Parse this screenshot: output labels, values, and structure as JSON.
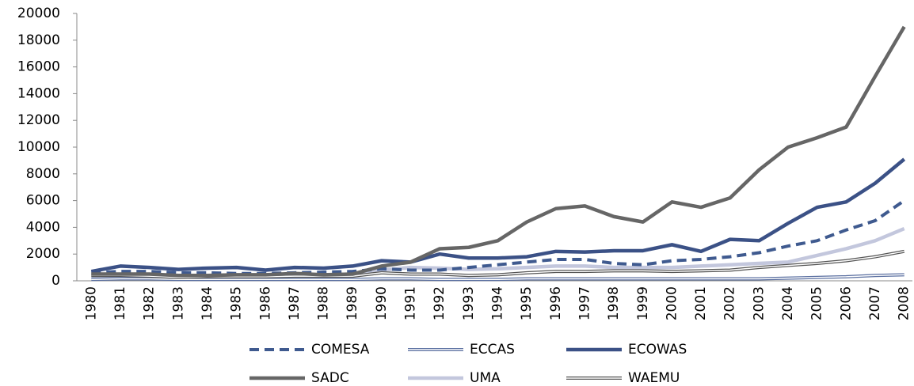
{
  "chart_data": {
    "type": "line",
    "categories": [
      "1980",
      "1981",
      "1982",
      "1983",
      "1984",
      "1985",
      "1986",
      "1987",
      "1988",
      "1989",
      "1990",
      "1991",
      "1992",
      "1993",
      "1994",
      "1995",
      "1996",
      "1997",
      "1998",
      "1999",
      "2000",
      "2001",
      "2002",
      "2003",
      "2004",
      "2005",
      "2006",
      "2007",
      "2008"
    ],
    "ylim": [
      0,
      20000
    ],
    "yticks": [
      0,
      2000,
      4000,
      6000,
      8000,
      10000,
      12000,
      14000,
      16000,
      18000,
      20000
    ],
    "grid": false,
    "legend": "bottom",
    "series": [
      {
        "name": "COMESA",
        "color": "#3f5a8f",
        "line_style": "dashed",
        "values": [
          600,
          700,
          700,
          600,
          600,
          550,
          550,
          600,
          650,
          700,
          900,
          800,
          800,
          1000,
          1200,
          1400,
          1600,
          1600,
          1300,
          1200,
          1500,
          1600,
          1800,
          2100,
          2600,
          3000,
          3800,
          4500,
          6000
        ]
      },
      {
        "name": "ECCAS",
        "color": "#5a6fa0",
        "line_style": "double",
        "values": [
          100,
          150,
          150,
          100,
          100,
          100,
          100,
          100,
          100,
          100,
          150,
          150,
          100,
          100,
          100,
          150,
          150,
          150,
          150,
          150,
          150,
          150,
          150,
          150,
          200,
          250,
          300,
          400,
          450
        ]
      },
      {
        "name": "ECOWAS",
        "color": "#3b5186",
        "line_style": "solid",
        "values": [
          700,
          1100,
          1000,
          850,
          950,
          1000,
          800,
          1000,
          950,
          1100,
          1500,
          1400,
          2000,
          1700,
          1700,
          1800,
          2200,
          2150,
          2250,
          2250,
          2700,
          2200,
          3100,
          3000,
          4300,
          5500,
          5900,
          7300,
          9100
        ]
      },
      {
        "name": "SADC",
        "color": "#666666",
        "line_style": "solid",
        "values": [
          500,
          500,
          500,
          400,
          400,
          450,
          450,
          550,
          450,
          500,
          1100,
          1400,
          2400,
          2500,
          3000,
          4400,
          5400,
          5600,
          4800,
          4400,
          5900,
          5500,
          6200,
          8300,
          10000,
          10700,
          11500,
          15300,
          19000
        ]
      },
      {
        "name": "UMA",
        "color": "#c3c7dd",
        "line_style": "solid",
        "values": [
          300,
          400,
          350,
          300,
          350,
          350,
          350,
          400,
          450,
          500,
          800,
          1000,
          950,
          850,
          900,
          1000,
          1100,
          1100,
          1000,
          1000,
          1000,
          1100,
          1200,
          1300,
          1400,
          1900,
          2400,
          3000,
          3900
        ]
      },
      {
        "name": "WAEMU",
        "color": "#555555",
        "line_style": "double",
        "values": [
          400,
          400,
          350,
          250,
          300,
          300,
          300,
          350,
          350,
          350,
          600,
          500,
          500,
          400,
          450,
          600,
          700,
          700,
          750,
          750,
          700,
          750,
          800,
          1000,
          1150,
          1300,
          1500,
          1800,
          2200
        ]
      }
    ]
  }
}
